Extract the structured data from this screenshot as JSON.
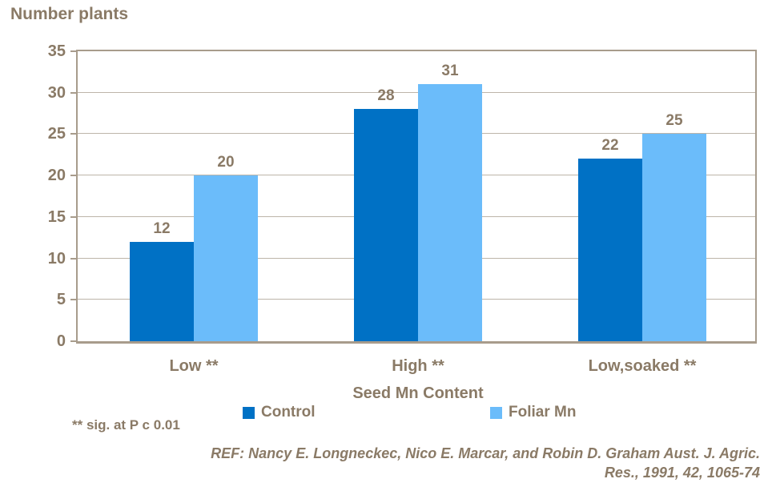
{
  "title": "Number plants",
  "chart_data": {
    "type": "bar",
    "categories": [
      "Low **",
      "High **",
      "Low,soaked **"
    ],
    "series": [
      {
        "name": "Control",
        "color": "#0071c5",
        "values": [
          12,
          28,
          22
        ]
      },
      {
        "name": "Foliar Mn",
        "color": "#6bbcfa",
        "values": [
          20,
          31,
          25
        ]
      }
    ],
    "title": "Number plants",
    "xlabel": "Seed Mn Content",
    "ylabel": "Number plants",
    "ylim": [
      0,
      35
    ],
    "ytick_step": 5,
    "grid": true,
    "legend_position": "bottom",
    "data_labels": true
  },
  "footnote": "** sig. at P c 0.01",
  "reference": {
    "line1": "REF: Nancy E. Longneckec, Nico E. Marcar, and Robin D. Graham Aust. J. Agric.",
    "line2": "Res., 1991, 42, 1065-74"
  },
  "colors": {
    "text": "#8a7a66",
    "axis": "#a89c8c",
    "gridline": "#bdb5a9",
    "series_control": "#0071c5",
    "series_foliar": "#6bbcfa"
  }
}
